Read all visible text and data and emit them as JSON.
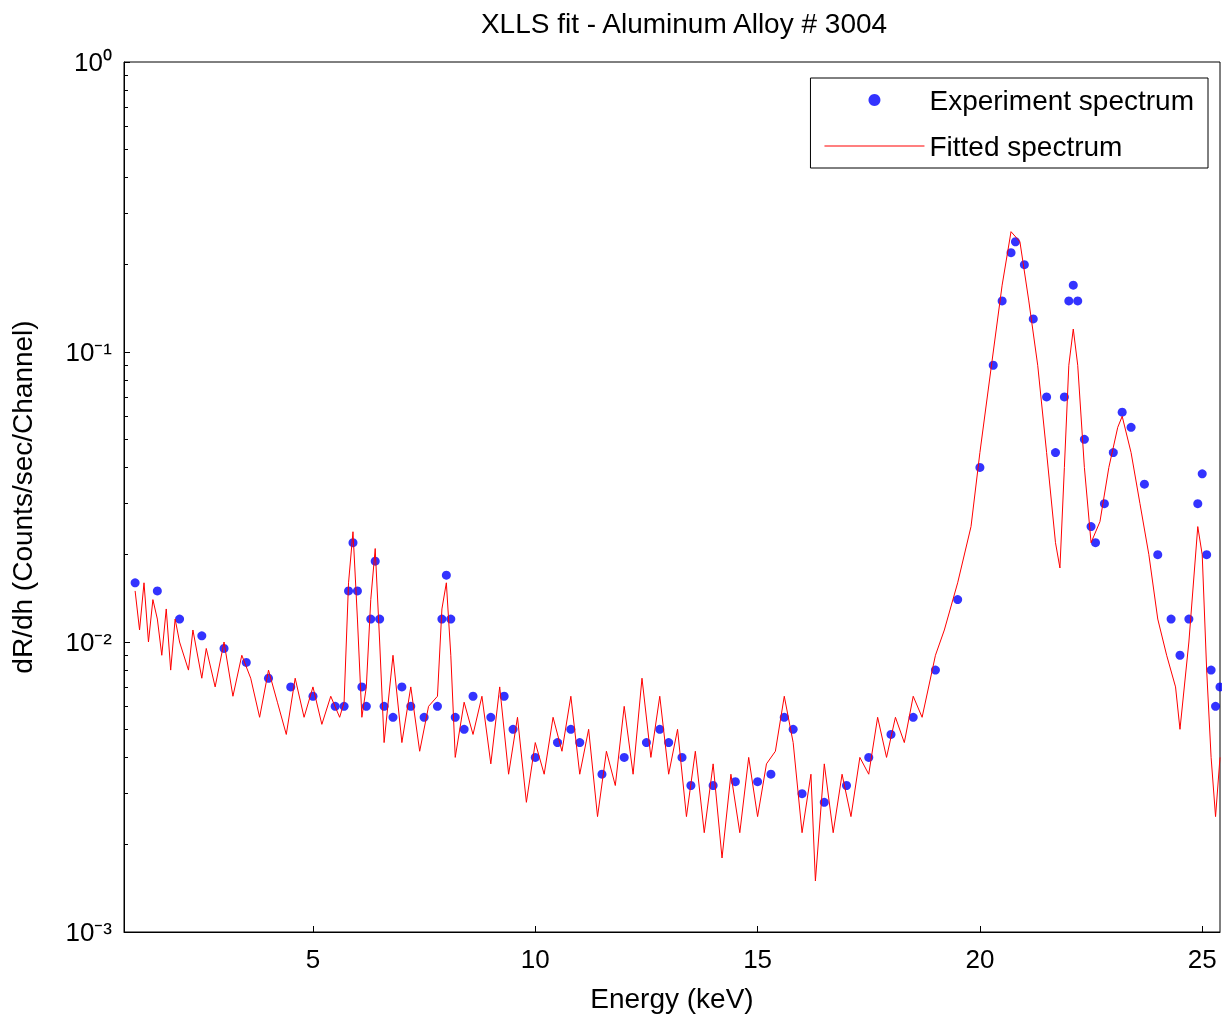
{
  "chart_data": {
    "type": "scatter",
    "title": "XLLS fit - Aluminum Alloy # 3004",
    "xlabel": "Energy (keV)",
    "ylabel": "dR/dh (Counts/sec/Channel)",
    "log": "y",
    "grid": false,
    "legend": "top right",
    "marker": "circle",
    "xlim": [
      0.75,
      25.4
    ],
    "xticks": [
      5,
      10,
      15,
      20,
      25
    ],
    "ylim": [
      0.001,
      1
    ],
    "yticks": [
      {
        "value": 0.001,
        "label": "10⁻³"
      },
      {
        "value": 0.01,
        "label": "10⁻²"
      },
      {
        "value": 0.1,
        "label": "10⁻¹"
      },
      {
        "value": 1,
        "label": "10⁰"
      }
    ],
    "series": [
      {
        "name": "Experiment spectrum",
        "color": "#0000ff",
        "x": [
          1.0,
          1.5,
          2.0,
          2.5,
          3.0,
          3.5,
          4.0,
          4.5,
          5.0,
          5.5,
          5.7,
          5.8,
          5.9,
          6.0,
          6.1,
          6.2,
          6.3,
          6.4,
          6.5,
          6.6,
          6.8,
          7.0,
          7.2,
          7.5,
          7.8,
          7.9,
          8.0,
          8.1,
          8.2,
          8.4,
          8.6,
          9.0,
          9.3,
          9.5,
          10.0,
          10.5,
          10.8,
          11.0,
          11.5,
          12.0,
          12.5,
          12.8,
          13.0,
          13.3,
          13.5,
          14.0,
          14.5,
          15.0,
          15.3,
          15.6,
          15.8,
          16.0,
          16.5,
          17.0,
          17.5,
          18.0,
          18.5,
          19.0,
          19.5,
          20.0,
          20.3,
          20.5,
          20.7,
          20.8,
          21.0,
          21.2,
          21.5,
          21.7,
          21.9,
          22.0,
          22.1,
          22.2,
          22.35,
          22.5,
          22.6,
          22.8,
          23.0,
          23.2,
          23.4,
          23.7,
          24.0,
          24.3,
          24.5,
          24.7,
          24.9,
          25.0,
          25.1,
          25.2,
          25.3,
          25.4
        ],
        "values": [
          0.016,
          0.015,
          0.012,
          0.0105,
          0.0095,
          0.0085,
          0.0075,
          0.007,
          0.0065,
          0.006,
          0.006,
          0.015,
          0.022,
          0.015,
          0.007,
          0.006,
          0.012,
          0.019,
          0.012,
          0.006,
          0.0055,
          0.007,
          0.006,
          0.0055,
          0.006,
          0.012,
          0.017,
          0.012,
          0.0055,
          0.005,
          0.0065,
          0.0055,
          0.0065,
          0.005,
          0.004,
          0.0045,
          0.005,
          0.0045,
          0.0035,
          0.004,
          0.0045,
          0.005,
          0.0045,
          0.004,
          0.0032,
          0.0032,
          0.0033,
          0.0033,
          0.0035,
          0.0055,
          0.005,
          0.003,
          0.0028,
          0.0032,
          0.004,
          0.0048,
          0.0055,
          0.008,
          0.014,
          0.04,
          0.09,
          0.15,
          0.22,
          0.24,
          0.2,
          0.13,
          0.07,
          0.045,
          0.07,
          0.15,
          0.17,
          0.15,
          0.05,
          0.025,
          0.022,
          0.03,
          0.045,
          0.062,
          0.055,
          0.035,
          0.02,
          0.012,
          0.009,
          0.012,
          0.03,
          0.038,
          0.02,
          0.008,
          0.006,
          0.007
        ]
      },
      {
        "name": "Fitted spectrum",
        "type": "line",
        "marker": "none",
        "color": "#ff0000",
        "x": [
          1.0,
          1.1,
          1.2,
          1.3,
          1.4,
          1.5,
          1.6,
          1.7,
          1.8,
          1.9,
          2.0,
          2.2,
          2.3,
          2.5,
          2.6,
          2.8,
          3.0,
          3.2,
          3.4,
          3.6,
          3.8,
          4.0,
          4.2,
          4.4,
          4.6,
          4.8,
          5.0,
          5.2,
          5.4,
          5.6,
          5.7,
          5.8,
          5.9,
          6.0,
          6.1,
          6.2,
          6.3,
          6.4,
          6.5,
          6.6,
          6.8,
          7.0,
          7.2,
          7.4,
          7.6,
          7.8,
          7.9,
          8.0,
          8.1,
          8.2,
          8.4,
          8.6,
          8.8,
          9.0,
          9.2,
          9.4,
          9.6,
          9.8,
          10.0,
          10.2,
          10.4,
          10.6,
          10.8,
          11.0,
          11.2,
          11.4,
          11.6,
          11.8,
          12.0,
          12.2,
          12.4,
          12.6,
          12.8,
          13.0,
          13.2,
          13.4,
          13.6,
          13.8,
          14.0,
          14.2,
          14.4,
          14.6,
          14.8,
          15.0,
          15.2,
          15.4,
          15.6,
          15.8,
          16.0,
          16.2,
          16.3,
          16.5,
          16.7,
          16.9,
          17.1,
          17.3,
          17.5,
          17.7,
          17.9,
          18.1,
          18.3,
          18.5,
          18.7,
          19.0,
          19.2,
          19.5,
          19.8,
          20.0,
          20.3,
          20.5,
          20.7,
          20.9,
          21.1,
          21.3,
          21.5,
          21.7,
          21.8,
          21.9,
          22.0,
          22.1,
          22.2,
          22.35,
          22.5,
          22.7,
          22.9,
          23.1,
          23.2,
          23.4,
          23.6,
          23.8,
          24.0,
          24.2,
          24.4,
          24.5,
          24.7,
          24.9,
          25.0,
          25.1,
          25.2,
          25.3,
          25.4
        ],
        "values": [
          0.015,
          0.011,
          0.016,
          0.01,
          0.014,
          0.012,
          0.009,
          0.013,
          0.008,
          0.012,
          0.01,
          0.008,
          0.011,
          0.0075,
          0.0095,
          0.007,
          0.01,
          0.0065,
          0.009,
          0.0075,
          0.0055,
          0.008,
          0.0062,
          0.0048,
          0.0075,
          0.0055,
          0.007,
          0.0052,
          0.0065,
          0.0055,
          0.0062,
          0.016,
          0.024,
          0.012,
          0.0055,
          0.007,
          0.014,
          0.021,
          0.01,
          0.0045,
          0.009,
          0.0045,
          0.007,
          0.0042,
          0.006,
          0.0065,
          0.013,
          0.016,
          0.009,
          0.004,
          0.0062,
          0.0048,
          0.0065,
          0.0038,
          0.007,
          0.0035,
          0.0055,
          0.0028,
          0.0045,
          0.0035,
          0.0055,
          0.0042,
          0.0065,
          0.0035,
          0.005,
          0.0025,
          0.0042,
          0.0032,
          0.006,
          0.0035,
          0.0075,
          0.004,
          0.0065,
          0.0035,
          0.005,
          0.0025,
          0.0042,
          0.0022,
          0.0038,
          0.0018,
          0.0035,
          0.0022,
          0.004,
          0.0025,
          0.0038,
          0.0042,
          0.0065,
          0.0045,
          0.0022,
          0.0035,
          0.0015,
          0.0038,
          0.0022,
          0.0035,
          0.0025,
          0.004,
          0.0035,
          0.0055,
          0.004,
          0.0055,
          0.0045,
          0.0065,
          0.0055,
          0.009,
          0.011,
          0.016,
          0.025,
          0.045,
          0.1,
          0.17,
          0.26,
          0.24,
          0.15,
          0.09,
          0.045,
          0.022,
          0.018,
          0.04,
          0.09,
          0.12,
          0.09,
          0.04,
          0.022,
          0.026,
          0.04,
          0.055,
          0.06,
          0.045,
          0.03,
          0.02,
          0.012,
          0.009,
          0.007,
          0.005,
          0.01,
          0.025,
          0.02,
          0.008,
          0.004,
          0.0025,
          0.004
        ]
      }
    ]
  }
}
